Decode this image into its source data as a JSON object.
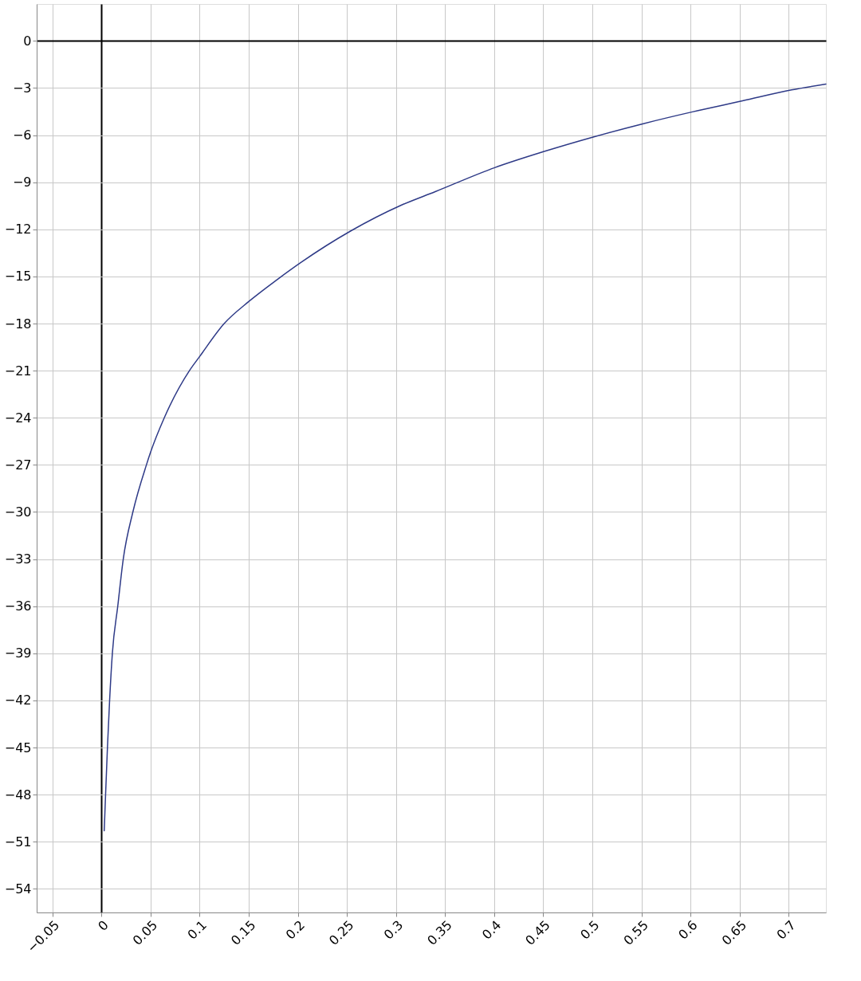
{
  "chart_data": {
    "type": "line",
    "x": [
      0.0028,
      0.0042,
      0.0061,
      0.0083,
      0.0111,
      0.0166,
      0.0222,
      0.032,
      0.0458,
      0.05,
      0.064,
      0.0896,
      0.1,
      0.125,
      0.15,
      0.179,
      0.2034,
      0.254,
      0.304,
      0.34,
      0.4006,
      0.451,
      0.5016,
      0.552,
      0.602,
      0.653,
      0.703,
      0.738
    ],
    "series": [
      {
        "color": "#2e3a87",
        "values": [
          -50.3,
          -48,
          -45,
          -42,
          -39,
          -36,
          -33,
          -30,
          -27,
          -26.2,
          -24,
          -21,
          -20.1,
          -18,
          -16.6,
          -15.2,
          -14.1,
          -12.1,
          -10.5,
          -9.6,
          -8.07,
          -7.04,
          -6.11,
          -5.27,
          -4.52,
          -3.82,
          -3.12,
          -2.75
        ]
      }
    ],
    "xlim": [
      -0.066,
      0.738
    ],
    "ylim": [
      -55.5,
      2.35
    ],
    "xticks": [
      -0.05,
      0,
      0.05,
      0.1,
      0.15,
      0.2,
      0.25,
      0.3,
      0.35,
      0.4,
      0.45,
      0.5,
      0.55,
      0.6,
      0.65,
      0.7
    ],
    "yticks": [
      0,
      -3,
      -6,
      -9,
      -12,
      -15,
      -18,
      -21,
      -24,
      -27,
      -30,
      -33,
      -36,
      -39,
      -42,
      -45,
      -48,
      -51,
      -54
    ],
    "grid": true,
    "marker": "none",
    "line_style": "solid"
  }
}
